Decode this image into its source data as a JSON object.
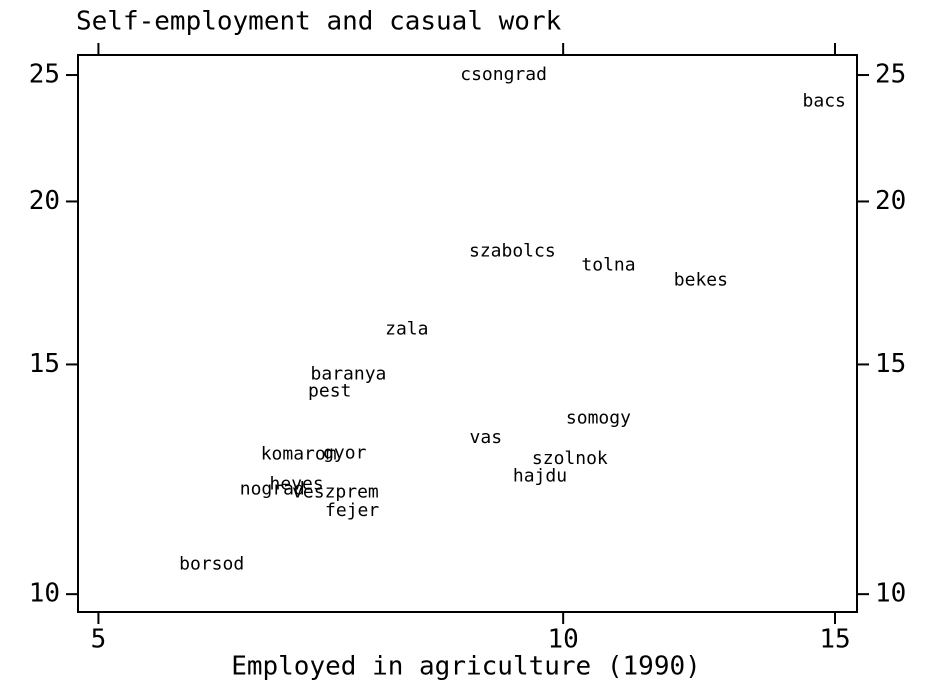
{
  "chart_data": {
    "type": "scatter",
    "title": "Self-employment and casual work",
    "x_label": "Employed in agriculture (1990)",
    "labels": [
      "csongrad",
      "bacs",
      "szabolcs",
      "tolna",
      "bekes",
      "zala",
      "baranya",
      "pest",
      "somogy",
      "vas",
      "komarom",
      "gyor",
      "szolnok",
      "hajdu",
      "heves",
      "nograd",
      "veszprem",
      "fejer",
      "borsod"
    ],
    "x": [
      9.15,
      14.76,
      9.27,
      10.7,
      12.28,
      7.92,
      7.26,
      7.06,
      10.54,
      8.91,
      6.74,
      7.22,
      10.1,
      9.66,
      6.72,
      6.48,
      7.12,
      7.3,
      5.92
    ],
    "y": [
      25.0,
      23.86,
      18.31,
      17.86,
      17.4,
      15.96,
      14.74,
      14.3,
      13.64,
      13.17,
      12.8,
      12.82,
      12.69,
      12.31,
      12.14,
      12.03,
      11.97,
      11.58,
      10.54
    ],
    "xlim": [
      4.85,
      15.5
    ],
    "ylim": [
      9.69,
      25.9
    ],
    "xticks": [
      5,
      10,
      15
    ],
    "yticks": [
      10,
      15,
      20,
      25
    ],
    "log_x": true,
    "log_y": true,
    "color": "#000000"
  }
}
